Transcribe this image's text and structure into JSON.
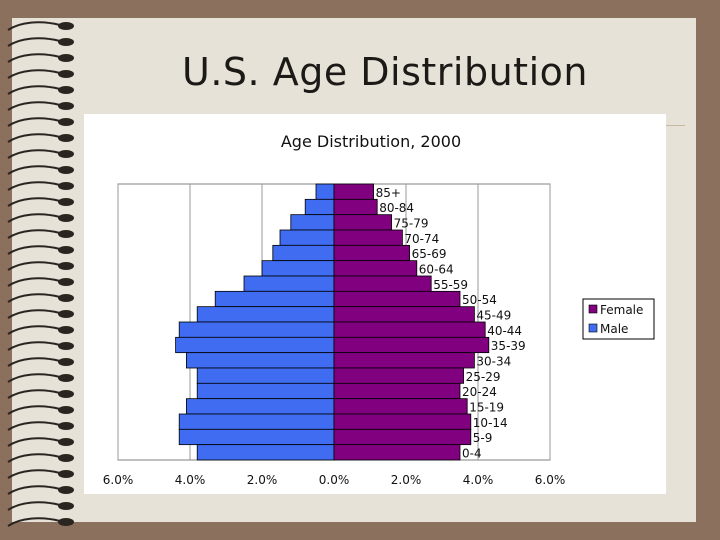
{
  "slide": {
    "title": "U.S. Age Distribution"
  },
  "colors": {
    "female": "#800080",
    "male": "#3f6cf0",
    "background": "#8b705e",
    "paper": "#e7e2d8"
  },
  "chart_data": {
    "type": "bar",
    "orientation": "horizontal",
    "title": "Age Distribution, 2000",
    "categories": [
      "85+",
      "80-84",
      "75-79",
      "70-74",
      "65-69",
      "60-64",
      "55-59",
      "50-54",
      "45-49",
      "40-44",
      "35-39",
      "30-34",
      "25-29",
      "20-24",
      "15-19",
      "10-14",
      "5-9",
      "0-4"
    ],
    "series": [
      {
        "name": "Female",
        "color": "#800080",
        "values": [
          1.1,
          1.2,
          1.6,
          1.9,
          2.1,
          2.3,
          2.7,
          3.5,
          3.9,
          4.2,
          4.3,
          3.9,
          3.6,
          3.5,
          3.7,
          3.8,
          3.8,
          3.5
        ]
      },
      {
        "name": "Male",
        "color": "#3f6cf0",
        "values": [
          0.5,
          0.8,
          1.2,
          1.5,
          1.7,
          2.0,
          2.5,
          3.3,
          3.8,
          4.3,
          4.4,
          4.1,
          3.8,
          3.8,
          4.1,
          4.3,
          4.3,
          3.8
        ]
      }
    ],
    "x_ticks": [
      "6.0%",
      "4.0%",
      "2.0%",
      "0.0%",
      "2.0%",
      "4.0%",
      "6.0%"
    ],
    "xlim": [
      -6,
      6
    ],
    "grid": true,
    "legend_position": "right",
    "legend": [
      "Female",
      "Male"
    ]
  }
}
